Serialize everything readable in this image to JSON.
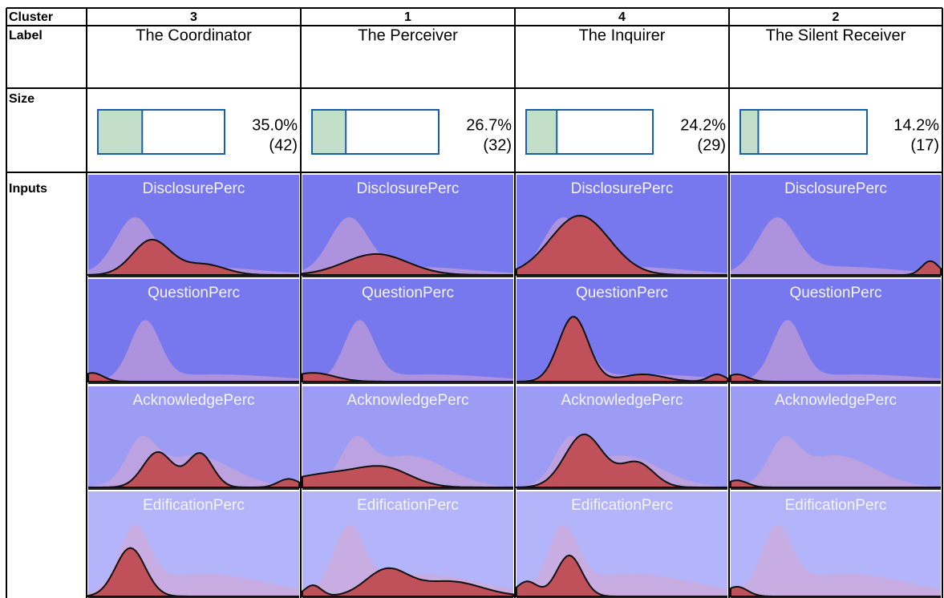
{
  "row_headers": {
    "cluster": "Cluster",
    "label": "Label",
    "size": "Size",
    "inputs": "Inputs"
  },
  "clusters": [
    {
      "cluster": "3",
      "label": "The Coordinator",
      "size": 35.0,
      "size_label": "35.0%",
      "count_label": "(42)"
    },
    {
      "cluster": "1",
      "label": "The Perceiver",
      "size": 26.7,
      "size_label": "26.7%",
      "count_label": "(32)"
    },
    {
      "cluster": "4",
      "label": "The Inquirer",
      "size": 24.2,
      "size_label": "24.2%",
      "count_label": "(29)"
    },
    {
      "cluster": "2",
      "label": "The Silent Receiver",
      "size": 14.2,
      "size_label": "14.2%",
      "count_label": "(17)"
    }
  ],
  "inputs": [
    "DisclosurePerc",
    "QuestionPerc",
    "AcknowledgePerc",
    "EdificationPerc"
  ]
}
